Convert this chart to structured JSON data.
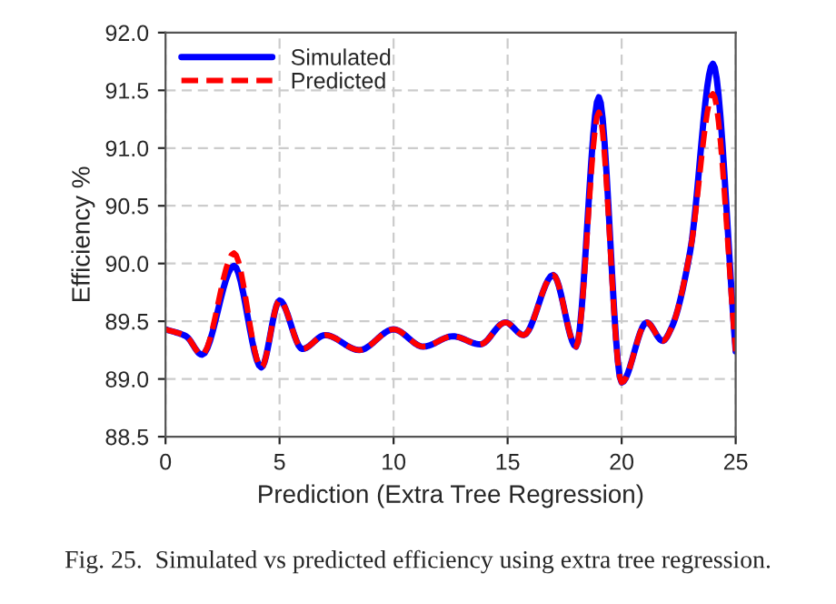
{
  "chart_data": {
    "type": "line",
    "xlabel": "Prediction (Extra Tree Regression)",
    "ylabel": "Efficiency %",
    "x": [
      0,
      0.9,
      1.6,
      3,
      4.2,
      5,
      6,
      7,
      8.5,
      10,
      11.3,
      12.6,
      13.8,
      14.9,
      15.7,
      17,
      18,
      19,
      20,
      21.1,
      21.8,
      22.2,
      23,
      24,
      25
    ],
    "series": [
      {
        "name": "Simulated",
        "color": "#0000ff",
        "line_style": "solid",
        "values": [
          89.43,
          89.37,
          89.21,
          89.98,
          89.1,
          89.68,
          89.26,
          89.38,
          89.25,
          89.43,
          89.28,
          89.37,
          89.3,
          89.49,
          89.38,
          89.9,
          89.28,
          91.44,
          88.97,
          89.49,
          89.33,
          89.45,
          90.1,
          91.73,
          89.24
        ]
      },
      {
        "name": "Predicted",
        "color": "#ff0000",
        "line_style": "dashed",
        "values": [
          89.43,
          89.37,
          89.21,
          90.09,
          89.1,
          89.68,
          89.26,
          89.38,
          89.25,
          89.43,
          89.28,
          89.37,
          89.3,
          89.49,
          89.38,
          89.9,
          89.28,
          91.31,
          88.97,
          89.49,
          89.33,
          89.45,
          90.1,
          91.47,
          89.24
        ]
      }
    ],
    "xlim": [
      0,
      25
    ],
    "xticks": [
      0,
      5,
      10,
      15,
      20,
      25
    ],
    "ylim": [
      88.5,
      92
    ],
    "yticks": [
      88.5,
      {
        "value": 89,
        "label": "89.0"
      },
      89.5,
      {
        "value": 90,
        "label": "90.0"
      },
      90.5,
      {
        "value": 91,
        "label": "91.0"
      },
      91.5,
      {
        "value": 92,
        "label": "92.0"
      }
    ],
    "grid": true,
    "legend": "top left",
    "annotations": [
      "Fig. 25.  Simulated vs predicted efficiency using extra tree regression."
    ]
  }
}
